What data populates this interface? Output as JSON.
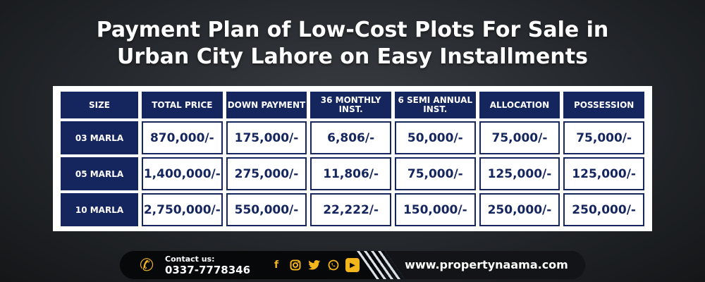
{
  "title": {
    "line1": "Payment Plan of Low-Cost Plots For Sale in",
    "line2": "Urban City Lahore on Easy Installments"
  },
  "table": {
    "headers": [
      "SIZE",
      "TOTAL PRICE",
      "DOWN PAYMENT",
      "36 MONTHLY INST.",
      "6 SEMI ANNUAL INST.",
      "ALLOCATION",
      "POSSESSION"
    ],
    "rows": [
      [
        "03 MARLA",
        "870,000/-",
        "175,000/-",
        "6,806/-",
        "50,000/-",
        "75,000/-",
        "75,000/-"
      ],
      [
        "05 MARLA",
        "1,400,000/-",
        "275,000/-",
        "11,806/-",
        "75,000/-",
        "125,000/-",
        "125,000/-"
      ],
      [
        "10 MARLA",
        "2,750,000/-",
        "550,000/-",
        "22,222/-",
        "150,000/-",
        "250,000/-",
        "250,000/-"
      ]
    ]
  },
  "footer": {
    "contact_label": "Contact us:",
    "contact_number": "0337-7778346",
    "socials": [
      "facebook-icon",
      "instagram-icon",
      "twitter-icon",
      "whatsapp-icon",
      "youtube-icon"
    ],
    "website": "www.propertynaama.com"
  },
  "colors": {
    "navy": "#15265e",
    "accent": "#f2b51c"
  }
}
